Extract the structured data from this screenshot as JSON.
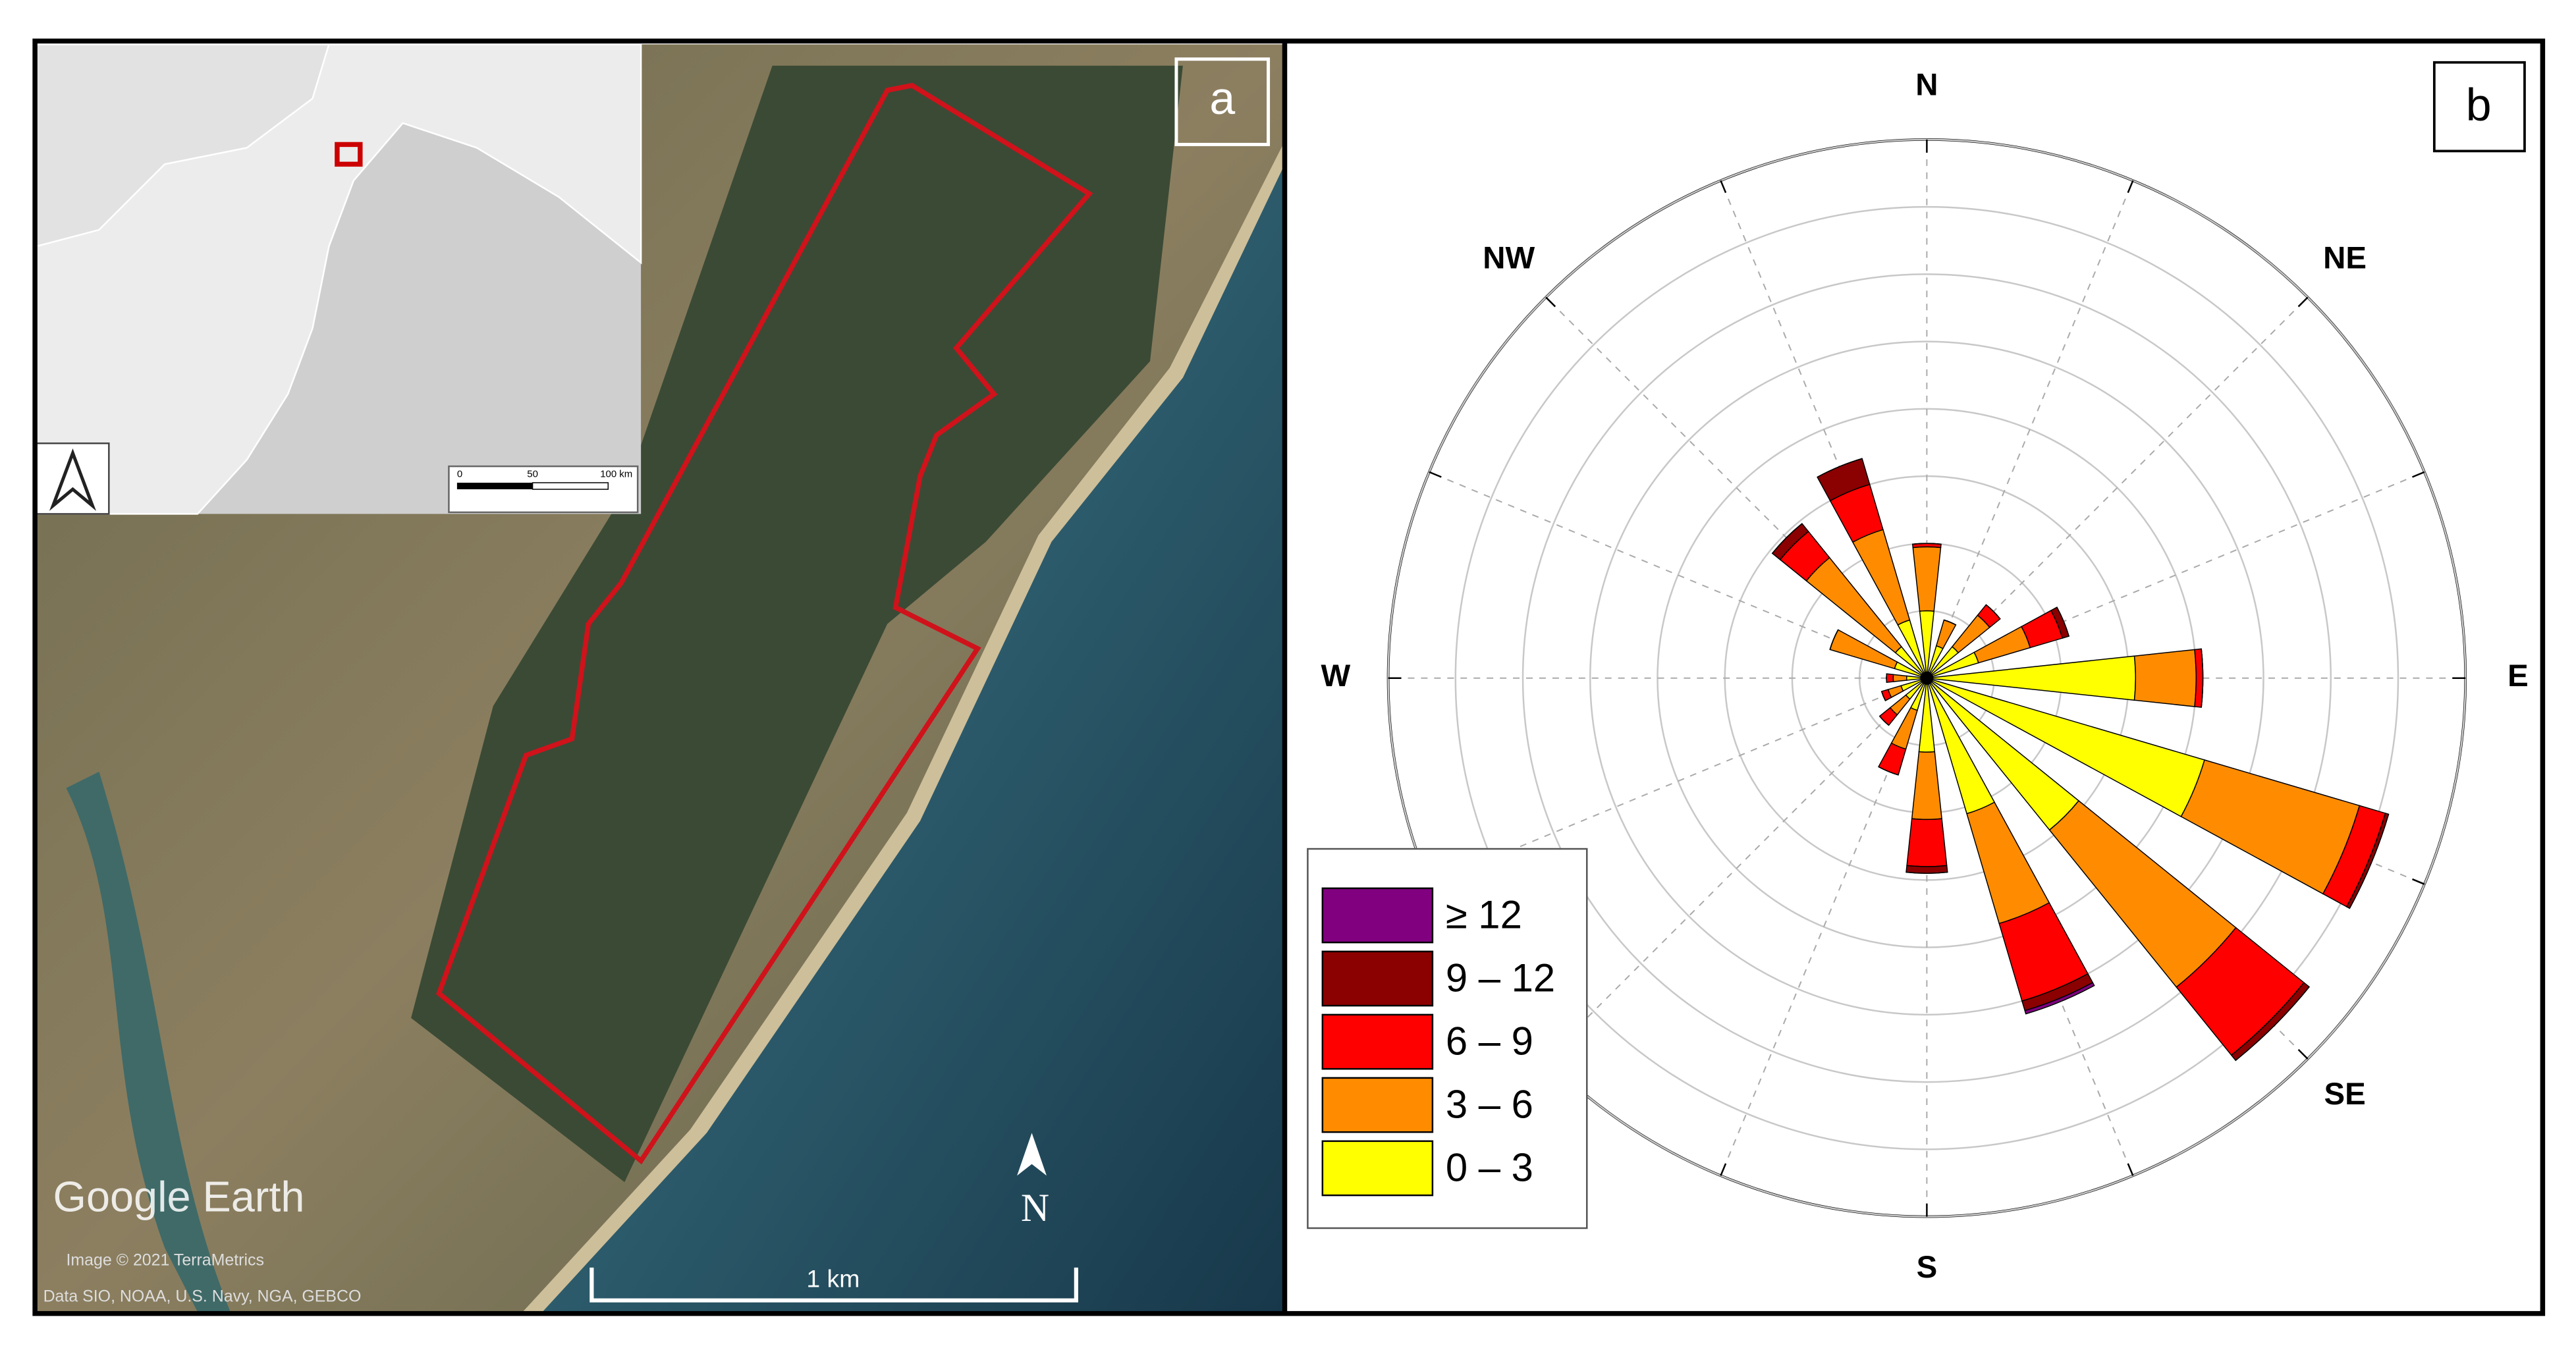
{
  "panel_a": {
    "label": "a",
    "watermark": "Google Earth",
    "credit_1": "Image © 2021 TerraMetrics",
    "credit_2": "Data SIO, NOAA, U.S. Navy, NGA, GEBCO",
    "scale_label": "1 km",
    "north": "N",
    "inset_scale_ticks": [
      "0",
      "50",
      "100 km"
    ]
  },
  "chart_data": {
    "type": "windrose",
    "panel_label": "b",
    "categories": [
      "N",
      null,
      "NE",
      null,
      "E",
      null,
      "SE",
      null,
      "S",
      null,
      null,
      null,
      "W",
      null,
      "NW",
      null
    ],
    "series": [
      {
        "name": "0 – 3",
        "color": "#ffff00",
        "values": [
          1.0,
          0.5,
          0.6,
          0.8,
          3.1,
          4.3,
          2.9,
          2.1,
          1.1,
          0.5,
          0.4,
          0.4,
          0.3,
          0.5,
          0.6,
          0.9
        ]
      },
      {
        "name": "3 – 6",
        "color": "#ff8c00",
        "values": [
          0.95,
          0.4,
          0.6,
          0.8,
          0.9,
          2.4,
          3.0,
          1.7,
          1.0,
          0.6,
          0.3,
          0.2,
          0.2,
          1.0,
          1.7,
          1.4
        ]
      },
      {
        "name": "6 – 9",
        "color": "#ff0000",
        "values": [
          0.05,
          0,
          0.2,
          0.5,
          0.1,
          0.4,
          1.3,
          1.2,
          0.7,
          0.4,
          0.2,
          0.1,
          0.1,
          0,
          0.5,
          0.7
        ]
      },
      {
        "name": "9 – 12",
        "color": "#8b0000",
        "values": [
          0,
          0,
          0,
          0.1,
          0,
          0.05,
          0.1,
          0.15,
          0.1,
          0,
          0,
          0,
          0,
          0,
          0.15,
          0.4
        ]
      },
      {
        "name": "≥ 12",
        "color": "#800080",
        "values": [
          0,
          0,
          0,
          0,
          0,
          0,
          0,
          0.05,
          0,
          0,
          0,
          0,
          0,
          0,
          0,
          0
        ]
      }
    ],
    "rlim": [
      0,
      8
    ],
    "rticks": [
      1,
      2,
      3,
      4,
      5,
      6,
      7,
      8
    ],
    "grid": true
  }
}
